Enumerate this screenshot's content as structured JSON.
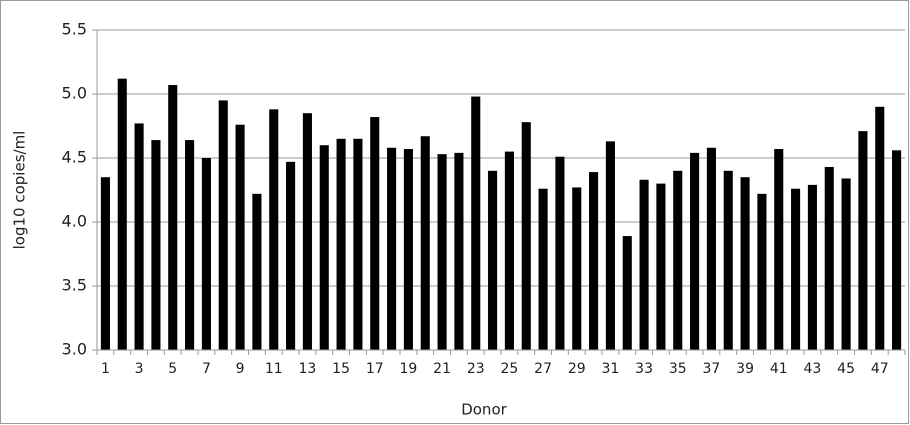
{
  "chart_data": {
    "type": "bar",
    "x_label": "Donor",
    "y_label": "log10 copies/ml",
    "categories": [
      "1",
      null,
      "3",
      null,
      "5",
      null,
      "7",
      null,
      "9",
      null,
      "11",
      null,
      "13",
      null,
      "15",
      null,
      "17",
      null,
      "19",
      null,
      "21",
      null,
      "23",
      null,
      "25",
      null,
      "27",
      null,
      "29",
      null,
      "31",
      null,
      "33",
      null,
      "35",
      null,
      "37",
      null,
      "39",
      null,
      "41",
      null,
      "43",
      null,
      "45",
      null,
      "47",
      null
    ],
    "values": [
      4.35,
      5.12,
      4.77,
      4.64,
      5.07,
      4.64,
      4.5,
      4.95,
      4.76,
      4.22,
      4.88,
      4.47,
      4.85,
      4.6,
      4.65,
      4.65,
      4.82,
      4.58,
      4.57,
      4.67,
      4.53,
      4.54,
      4.98,
      4.4,
      4.55,
      4.78,
      4.26,
      4.51,
      4.27,
      4.39,
      4.63,
      3.89,
      4.33,
      4.3,
      4.4,
      4.54,
      4.58,
      4.4,
      4.35,
      4.22,
      4.57,
      4.26,
      4.29,
      4.43,
      4.34,
      4.71,
      4.9,
      4.56
    ],
    "color": "#000000",
    "ylim": [
      3,
      5.5
    ],
    "yticks": [
      {
        "value": 3,
        "label": "3.0"
      },
      3.5,
      {
        "value": 4,
        "label": "4.0"
      },
      4.5,
      {
        "value": 5,
        "label": "5.0"
      },
      5.5
    ],
    "grid": true
  }
}
